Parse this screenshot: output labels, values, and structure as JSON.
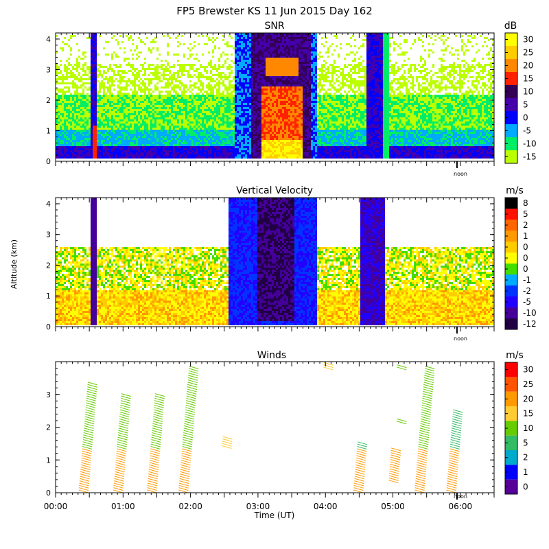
{
  "figure": {
    "title": "FP5 Brewster KS  11 Jun 2015 Day 162",
    "ylabel": "Altitude (km)",
    "xlabel": "Time (UT)",
    "noon_label": "noon"
  },
  "chart_data": [
    {
      "type": "heatmap",
      "title": "SNR",
      "xlabel": "Time (UT)",
      "ylabel": "Altitude (km)",
      "xlim": [
        "00:00",
        "06:30"
      ],
      "ylim": [
        0,
        4.2
      ],
      "yticks": [
        "0",
        "1",
        "2",
        "3",
        "4"
      ],
      "colorbar": {
        "unit": "dB",
        "levels": [
          "30",
          "25",
          "20",
          "15",
          "10",
          "5",
          "0",
          "-5",
          "-10",
          "-15"
        ],
        "colors": [
          "#ffff00",
          "#ffcc00",
          "#ff8800",
          "#ff2200",
          "#330055",
          "#4400aa",
          "#0000ff",
          "#00aaff",
          "#00ee66",
          "#bbff00"
        ]
      },
      "features": [
        {
          "time": "00:35",
          "description": "narrow intense column to 4 km"
        },
        {
          "time": "02:20-03:50",
          "description": "strong echo column, max near 03:05-03:25 below 1 km"
        },
        {
          "time": "04:40-05:00",
          "description": "narrow column to 4 km"
        }
      ]
    },
    {
      "type": "heatmap",
      "title": "Vertical Velocity",
      "xlabel": "Time (UT)",
      "ylabel": "Altitude (km)",
      "xlim": [
        "00:00",
        "06:30"
      ],
      "ylim": [
        0,
        4.2
      ],
      "yticks": [
        "0",
        "1",
        "2",
        "3",
        "4"
      ],
      "colorbar": {
        "unit": "m/s",
        "levels": [
          "8",
          "5",
          "2",
          "1",
          "0",
          "0",
          "0",
          "-1",
          "-2",
          "-5",
          "-10",
          "-12"
        ],
        "colors": [
          "#000000",
          "#ff1100",
          "#ff6600",
          "#ff9900",
          "#ffcc00",
          "#ffff00",
          "#44dd00",
          "#00aaff",
          "#0033ff",
          "#2200ff",
          "#440099",
          "#220044"
        ]
      },
      "features": [
        {
          "time": "00:35",
          "description": "downward column to 4 km"
        },
        {
          "time": "02:20-03:50",
          "description": "strong downward motion (-5 to -12 m/s)"
        },
        {
          "time": "04:35-05:00",
          "description": "downward columns"
        }
      ]
    },
    {
      "type": "scatter",
      "title": "Winds",
      "xlabel": "Time (UT)",
      "ylabel": "Altitude (km)",
      "xlim": [
        "00:00",
        "06:30"
      ],
      "ylim": [
        0,
        4
      ],
      "yticks": [
        "0",
        "1",
        "2",
        "3"
      ],
      "xticks": [
        "00:00",
        "01:00",
        "02:00",
        "03:00",
        "04:00",
        "05:00",
        "06:00"
      ],
      "colorbar": {
        "unit": "m/s",
        "levels": [
          "30",
          "25",
          "20",
          "15",
          "10",
          "5",
          "2",
          "1",
          "0"
        ],
        "colors": [
          "#ff0000",
          "#ff5500",
          "#ff9900",
          "#ffcc33",
          "#66cc00",
          "#33bb66",
          "#00aacc",
          "#0000ff",
          "#550099"
        ]
      },
      "series": [
        {
          "time": "00:25",
          "alt_min": 0.0,
          "alt_max": 3.3,
          "speed": 12
        },
        {
          "time": "00:55",
          "alt_min": 0.0,
          "alt_max": 3.0,
          "speed": 12
        },
        {
          "time": "01:25",
          "alt_min": 0.0,
          "alt_max": 3.0,
          "speed": 12
        },
        {
          "time": "01:55",
          "alt_min": 0.0,
          "alt_max": 3.8,
          "speed": 12
        },
        {
          "time": "02:25",
          "alt_min": 1.35,
          "alt_max": 1.65,
          "speed": 15
        },
        {
          "time": "03:55",
          "alt_min": 3.75,
          "alt_max": 3.95,
          "speed": 17
        },
        {
          "time": "04:25",
          "alt_min": 0.0,
          "alt_max": 1.5,
          "speed": 6
        },
        {
          "time": "04:55",
          "alt_min": 0.3,
          "alt_max": 1.3,
          "speed": 7
        },
        {
          "time": "05:00",
          "alt_min": 2.1,
          "alt_max": 2.2,
          "speed": 10
        },
        {
          "time": "05:00",
          "alt_min": 3.75,
          "alt_max": 3.85,
          "speed": 10
        },
        {
          "time": "05:25",
          "alt_min": 0.0,
          "alt_max": 3.8,
          "speed": 9
        },
        {
          "time": "05:50",
          "alt_min": 0.0,
          "alt_max": 2.5,
          "speed": 8
        }
      ]
    }
  ]
}
